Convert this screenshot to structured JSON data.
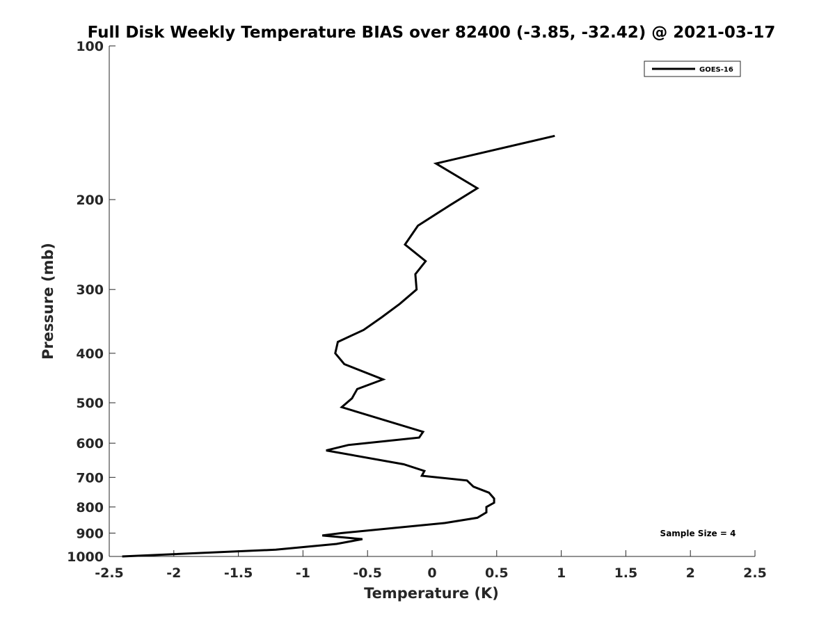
{
  "chart_data": {
    "type": "line",
    "title": "Full Disk Weekly Temperature BIAS over 82400 (-3.85, -32.42) @ 2021-03-17",
    "xlabel": "Temperature (K)",
    "ylabel": "Pressure (mb)",
    "xlim": [
      -2.5,
      2.5
    ],
    "ylim": [
      100,
      1000
    ],
    "y_scale": "log",
    "y_reversed": true,
    "x_ticks": [
      "-2.5",
      "-2",
      "-1.5",
      "-1",
      "-0.5",
      "0",
      "0.5",
      "1",
      "1.5",
      "2",
      "2.5"
    ],
    "x_tick_values": [
      -2.5,
      -2,
      -1.5,
      -1,
      -0.5,
      0,
      0.5,
      1,
      1.5,
      2,
      2.5
    ],
    "y_ticks": [
      "100",
      "200",
      "300",
      "400",
      "500",
      "600",
      "700",
      "800",
      "900",
      "1000"
    ],
    "y_tick_values": [
      100,
      200,
      300,
      400,
      500,
      600,
      700,
      800,
      900,
      1000
    ],
    "grid": false,
    "legend_position": "top-right",
    "annotation": "Sample Size = 4",
    "line_color": "#000000",
    "series": [
      {
        "name": "GOES-16",
        "points": [
          [
            0.95,
            150
          ],
          [
            0.03,
            170
          ],
          [
            0.35,
            190
          ],
          [
            0.14,
            205
          ],
          [
            -0.11,
            225
          ],
          [
            -0.21,
            245
          ],
          [
            -0.05,
            264
          ],
          [
            -0.13,
            280
          ],
          [
            -0.12,
            300
          ],
          [
            -0.25,
            320
          ],
          [
            -0.39,
            340
          ],
          [
            -0.53,
            360
          ],
          [
            -0.73,
            380
          ],
          [
            -0.75,
            400
          ],
          [
            -0.68,
            420
          ],
          [
            -0.38,
            450
          ],
          [
            -0.58,
            470
          ],
          [
            -0.62,
            490
          ],
          [
            -0.7,
            510
          ],
          [
            -0.07,
            570
          ],
          [
            -0.1,
            585
          ],
          [
            -0.65,
            605
          ],
          [
            -0.82,
            620
          ],
          [
            -0.22,
            660
          ],
          [
            -0.06,
            680
          ],
          [
            -0.08,
            695
          ],
          [
            0.27,
            710
          ],
          [
            0.32,
            730
          ],
          [
            0.44,
            750
          ],
          [
            0.48,
            770
          ],
          [
            0.48,
            785
          ],
          [
            0.42,
            800
          ],
          [
            0.42,
            820
          ],
          [
            0.35,
            840
          ],
          [
            0.1,
            860
          ],
          [
            -0.7,
            900
          ],
          [
            -0.85,
            910
          ],
          [
            -0.54,
            925
          ],
          [
            -0.74,
            945
          ],
          [
            -1.21,
            970
          ],
          [
            -2.4,
            1000
          ]
        ]
      }
    ]
  }
}
